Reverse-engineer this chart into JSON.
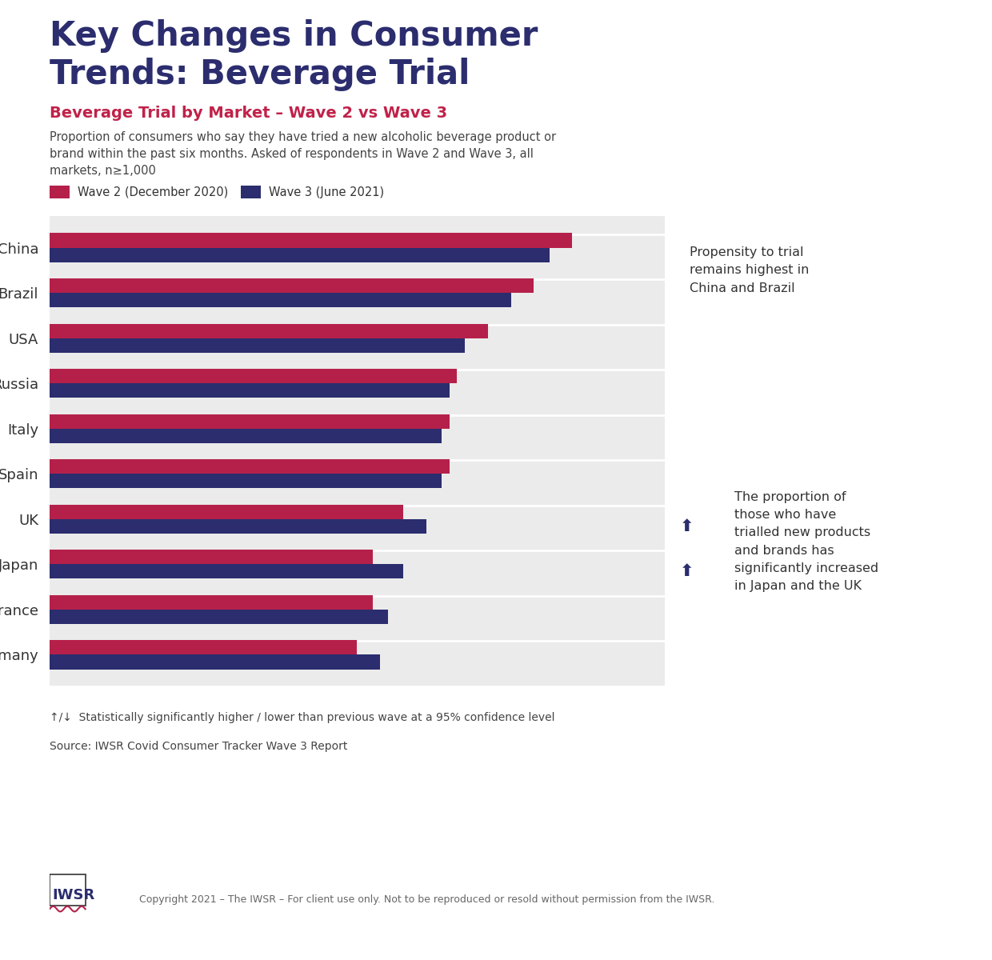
{
  "title_line1": "Key Changes in Consumer",
  "title_line2": "Trends: Beverage Trial",
  "subtitle": "Beverage Trial by Market – Wave 2 vs Wave 3",
  "description": "Proportion of consumers who say they have tried a new alcoholic beverage product or\nbrand within the past six months. Asked of respondents in Wave 2 and Wave 3, all\nmarkets, n≥1,000",
  "legend_wave2": "Wave 2 (December 2020)",
  "legend_wave3": "Wave 3 (June 2021)",
  "countries": [
    "China",
    "Brazil",
    "USA",
    "Russia",
    "Italy",
    "Spain",
    "UK",
    "Japan",
    "France",
    "Germany"
  ],
  "wave2": [
    68,
    63,
    57,
    53,
    52,
    52,
    46,
    42,
    42,
    40
  ],
  "wave3": [
    65,
    60,
    54,
    52,
    51,
    51,
    49,
    46,
    44,
    43
  ],
  "wave2_color": "#b5204a",
  "wave3_color": "#2b2d6e",
  "title_color": "#2b2d6e",
  "subtitle_color": "#c0224a",
  "text_color": "#333333",
  "annotation1_text": "Propensity to trial\nremains highest in\nChina and Brazil",
  "annotation2_text": "The proportion of\nthose who have\ntrialled new products\nand brands has\nsignificantly increased\nin Japan and the UK",
  "footer_note": "↑/↓  Statistically significantly higher / lower than previous wave at a 95% confidence level",
  "source": "Source: IWSR Covid Consumer Tracker Wave 3 Report",
  "copyright": "Copyright 2021 – The IWSR – For client use only. Not to be reproduced or resold without permission from the IWSR."
}
